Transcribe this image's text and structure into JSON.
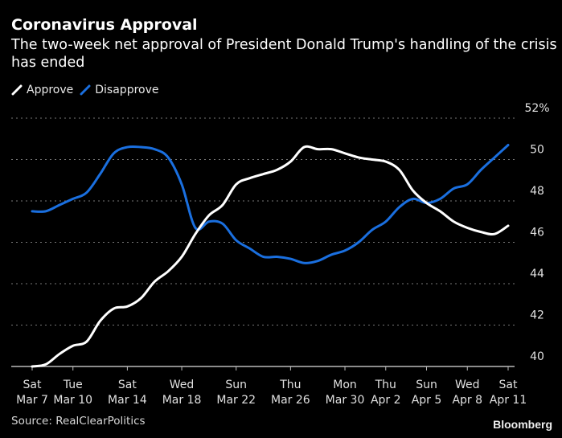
{
  "header": {
    "title": "Coronavirus Approval",
    "subtitle": "The two-week net approval of President Donald Trump's handling of the crisis has ended"
  },
  "footer": {
    "source": "Source: RealClearPolitics",
    "brand": "Bloomberg"
  },
  "colors": {
    "background": "#000000",
    "approve": "#ffffff",
    "disapprove": "#1a6fdf",
    "grid": "#777777",
    "axis": "#bbbbbb"
  },
  "chart_data": {
    "type": "line",
    "title": "Coronavirus Approval",
    "subtitle": "The two-week net approval of President Donald Trump's handling of the crisis has ended",
    "xlabel": "",
    "ylabel": "",
    "ylim": [
      40,
      52
    ],
    "yticks": [
      40,
      42,
      44,
      46,
      48,
      50,
      52
    ],
    "ytick_labels": [
      "40",
      "42",
      "44",
      "46",
      "48",
      "50",
      "52%"
    ],
    "y_axis_side": "right",
    "grid": true,
    "legend_position": "top-left",
    "x": [
      "Mar 7",
      "Mar 8",
      "Mar 9",
      "Mar 10",
      "Mar 11",
      "Mar 12",
      "Mar 13",
      "Mar 14",
      "Mar 15",
      "Mar 16",
      "Mar 17",
      "Mar 18",
      "Mar 19",
      "Mar 20",
      "Mar 21",
      "Mar 22",
      "Mar 23",
      "Mar 24",
      "Mar 25",
      "Mar 26",
      "Mar 27",
      "Mar 28",
      "Mar 29",
      "Mar 30",
      "Mar 31",
      "Apr 1",
      "Apr 2",
      "Apr 3",
      "Apr 4",
      "Apr 5",
      "Apr 6",
      "Apr 7",
      "Apr 8",
      "Apr 9",
      "Apr 10",
      "Apr 11"
    ],
    "xticks": [
      {
        "index": 0,
        "day": "Sat",
        "date": "Mar 7"
      },
      {
        "index": 3,
        "day": "Tue",
        "date": "Mar 10"
      },
      {
        "index": 7,
        "day": "Sat",
        "date": "Mar 14"
      },
      {
        "index": 11,
        "day": "Wed",
        "date": "Mar 18"
      },
      {
        "index": 15,
        "day": "Sun",
        "date": "Mar 22"
      },
      {
        "index": 19,
        "day": "Thu",
        "date": "Mar 26"
      },
      {
        "index": 23,
        "day": "Mon",
        "date": "Mar 30"
      },
      {
        "index": 26,
        "day": "Thu",
        "date": "Apr 2"
      },
      {
        "index": 29,
        "day": "Sun",
        "date": "Apr 5"
      },
      {
        "index": 32,
        "day": "Wed",
        "date": "Apr 8"
      },
      {
        "index": 35,
        "day": "Sat",
        "date": "Apr 11"
      }
    ],
    "series": [
      {
        "name": "Approve",
        "color": "#ffffff",
        "values": [
          40.0,
          40.1,
          40.6,
          41.0,
          41.2,
          42.2,
          42.8,
          42.9,
          43.3,
          44.1,
          44.6,
          45.3,
          46.4,
          47.3,
          47.8,
          48.8,
          49.1,
          49.3,
          49.5,
          49.9,
          50.6,
          50.5,
          50.5,
          50.3,
          50.1,
          50.0,
          49.9,
          49.5,
          48.5,
          47.9,
          47.5,
          47.0,
          46.7,
          46.5,
          46.4,
          46.8
        ]
      },
      {
        "name": "Disapprove",
        "color": "#1a6fdf",
        "values": [
          47.5,
          47.5,
          47.8,
          48.1,
          48.4,
          49.3,
          50.3,
          50.6,
          50.6,
          50.5,
          50.1,
          48.8,
          46.7,
          47.0,
          46.9,
          46.1,
          45.7,
          45.3,
          45.3,
          45.2,
          45.0,
          45.1,
          45.4,
          45.6,
          46.0,
          46.6,
          47.0,
          47.7,
          48.1,
          47.9,
          48.1,
          48.6,
          48.8,
          49.5,
          50.1,
          50.7
        ]
      }
    ]
  }
}
